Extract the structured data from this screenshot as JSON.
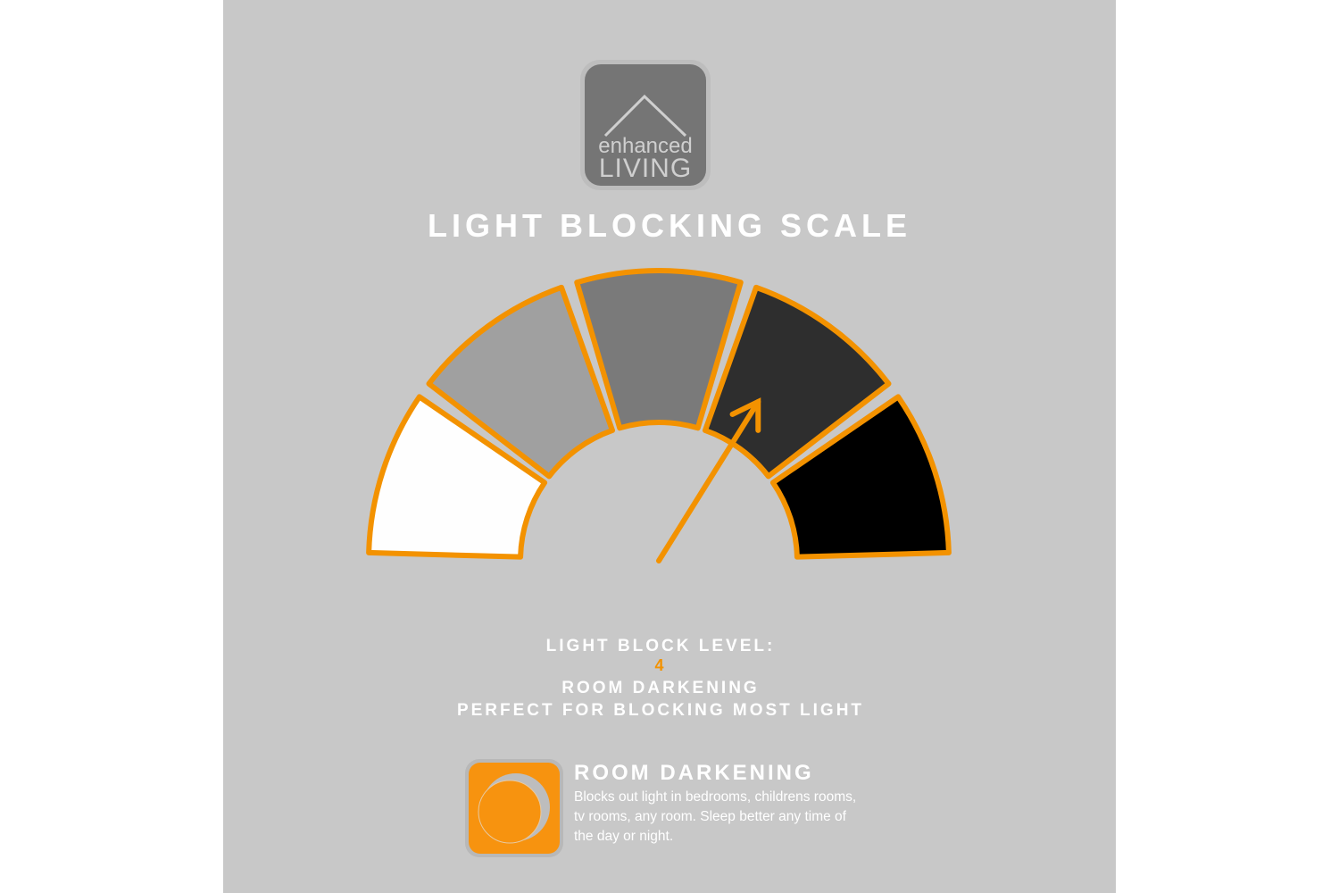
{
  "logo": {
    "line1": "enhanced",
    "line2": "LIVING",
    "icon": "house-roof-icon"
  },
  "title": "LIGHT BLOCKING SCALE",
  "gauge": {
    "level": 4,
    "max_level": 5,
    "segment_colors": [
      "#fefefe",
      "#a0a0a0",
      "#7a7a7a",
      "#2e2e2e",
      "#000000"
    ],
    "accent": "#f39200"
  },
  "info": {
    "label": "LIGHT BLOCK LEVEL:",
    "level_text": "4",
    "category": "ROOM DARKENING",
    "tagline": "PERFECT FOR BLOCKING MOST LIGHT"
  },
  "feature": {
    "icon": "moon-icon",
    "title": "ROOM DARKENING",
    "description": "Blocks out light in bedrooms, childrens rooms, tv rooms, any room. Sleep better any time of the day or night."
  }
}
